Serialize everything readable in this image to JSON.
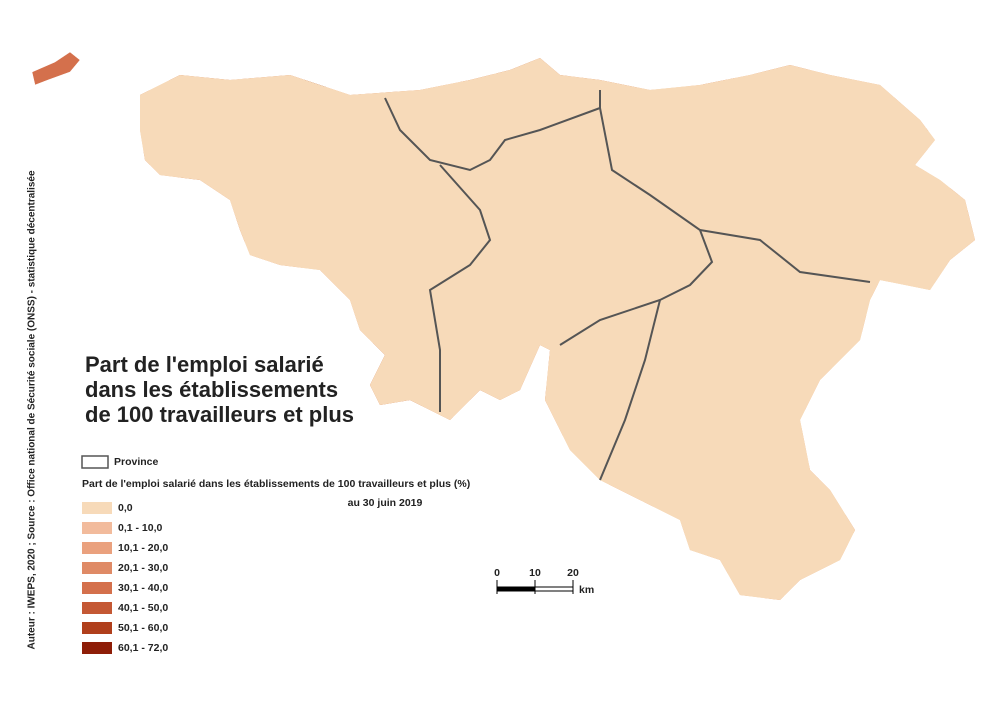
{
  "title_lines": [
    "Part de l'emploi salarié",
    "dans les établissements",
    "de 100 travailleurs et plus"
  ],
  "legend": {
    "province": "Province",
    "title": "Part de l'emploi salarié dans les établissements de 100 travailleurs et plus (%)",
    "date": "au 30 juin 2019",
    "classes": [
      {
        "label": "0,0",
        "color": "#f7dab9"
      },
      {
        "label": "0,1 - 10,0",
        "color": "#f2bb9c"
      },
      {
        "label": "10,1 - 20,0",
        "color": "#eaa17e"
      },
      {
        "label": "20,1 - 30,0",
        "color": "#df8a66"
      },
      {
        "label": "30,1 - 40,0",
        "color": "#d4704c"
      },
      {
        "label": "40,1 - 50,0",
        "color": "#c45834"
      },
      {
        "label": "50,1 - 60,0",
        "color": "#b03f1c"
      },
      {
        "label": "60,1 - 72,0",
        "color": "#8e1d07"
      }
    ]
  },
  "scale_bar": {
    "ticks": [
      0,
      10,
      20
    ],
    "unit": "km"
  },
  "credit": "Auteur : IWEPS, 2020 ; Source : Office national de Sécurité sociale (ONSS) - statistique décentralisée"
}
